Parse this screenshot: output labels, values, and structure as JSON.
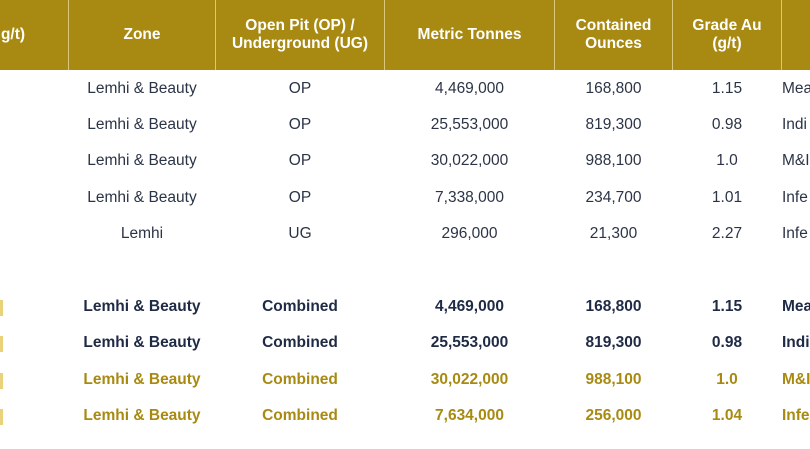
{
  "header": [
    {
      "name": "grade-col-partial",
      "label": "g/t)"
    },
    {
      "name": "zone",
      "label": "Zone"
    },
    {
      "name": "op-ug",
      "label": "Open Pit (OP) /\nUnderground (UG)"
    },
    {
      "name": "tonnes",
      "label": "Metric Tonnes"
    },
    {
      "name": "ounces",
      "label": "Contained\nOunces"
    },
    {
      "name": "grade",
      "label": "Grade Au\n(g/t)"
    }
  ],
  "rows": [
    {
      "zone": "Lemhi & Beauty",
      "type": "OP",
      "tonnes": "4,469,000",
      "ounces": "168,800",
      "grade": "1.15",
      "category": "Mea"
    },
    {
      "zone": "Lemhi & Beauty",
      "type": "OP",
      "tonnes": "25,553,000",
      "ounces": "819,300",
      "grade": "0.98",
      "category": "Indi"
    },
    {
      "zone": "Lemhi & Beauty",
      "type": "OP",
      "tonnes": "30,022,000",
      "ounces": "988,100",
      "grade": "1.0",
      "category": "M&I"
    },
    {
      "zone": "Lemhi & Beauty",
      "type": "OP",
      "tonnes": "7,338,000",
      "ounces": "234,700",
      "grade": "1.01",
      "category": "Infe"
    },
    {
      "zone": "Lemhi",
      "type": "UG",
      "tonnes": "296,000",
      "ounces": "21,300",
      "grade": "2.27",
      "category": "Infe"
    }
  ],
  "totals": [
    {
      "zone": "Lemhi & Beauty",
      "type": "Combined",
      "tonnes": "4,469,000",
      "ounces": "168,800",
      "grade": "1.15",
      "category": "Mea"
    },
    {
      "zone": "Lemhi & Beauty",
      "type": "Combined",
      "tonnes": "25,553,000",
      "ounces": "819,300",
      "grade": "0.98",
      "category": "Indi"
    },
    {
      "zone": "Lemhi & Beauty",
      "type": "Combined",
      "tonnes": "30,022,000",
      "ounces": "988,100",
      "grade": "1.0",
      "category": "M&I"
    },
    {
      "zone": "Lemhi & Beauty",
      "type": "Combined",
      "tonnes": "7,634,000",
      "ounces": "256,000",
      "grade": "1.04",
      "category": "Infe"
    }
  ],
  "colors": {
    "header_bg": "#a88a12",
    "dark_text": "#1f2a44",
    "gold_text": "#a88a12"
  }
}
